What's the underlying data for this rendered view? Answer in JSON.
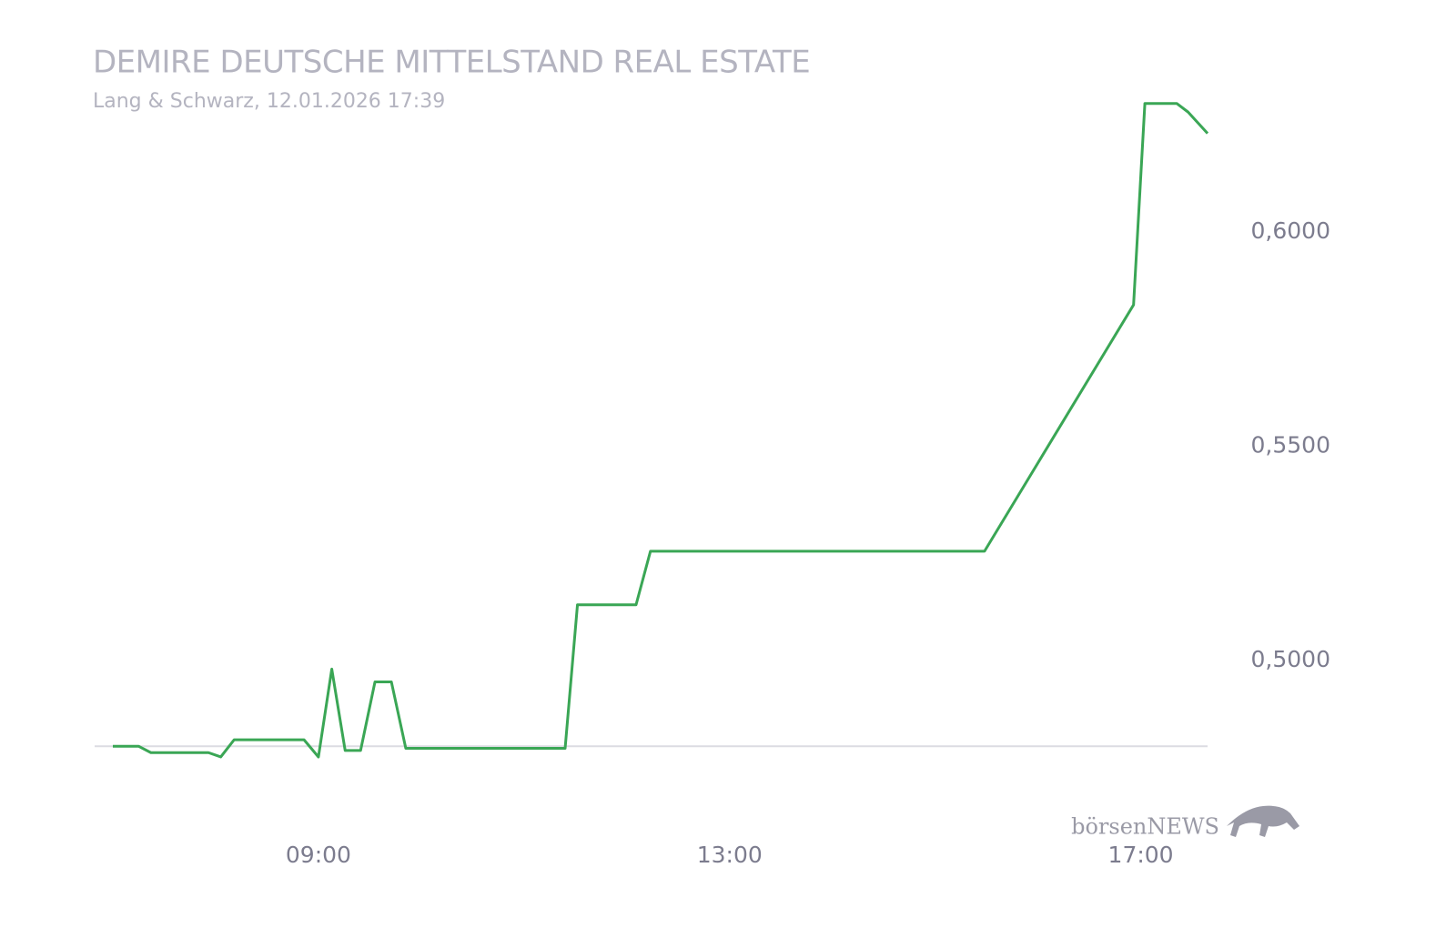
{
  "chart_data": {
    "type": "line",
    "title": "DEMIRE DEUTSCHE MITTELSTAND REAL ESTATE",
    "subtitle": "Lang & Schwarz, 12.01.2026 17:39",
    "watermark": "börsenNEWS",
    "x": [
      7.0,
      7.25,
      7.37,
      7.93,
      8.05,
      8.18,
      8.86,
      9.0,
      9.13,
      9.26,
      9.41,
      9.55,
      9.71,
      9.85,
      11.4,
      11.52,
      12.09,
      12.23,
      15.48,
      16.93,
      17.04,
      17.35,
      17.46,
      17.65
    ],
    "series": [
      {
        "name": "DEMIRE",
        "color": "#3aa655",
        "values": [
          0.48,
          0.48,
          0.4785,
          0.4785,
          0.4775,
          0.4815,
          0.4815,
          0.4775,
          0.498,
          0.479,
          0.479,
          0.495,
          0.495,
          0.4795,
          0.4795,
          0.513,
          0.513,
          0.5255,
          0.5255,
          0.583,
          0.63,
          0.63,
          0.628,
          0.623
        ]
      }
    ],
    "reference_line": 0.48,
    "xlim": [
      7.0,
      17.65
    ],
    "xticks": [
      {
        "value": 9,
        "label": "09:00"
      },
      {
        "value": 13,
        "label": "13:00"
      },
      {
        "value": 17,
        "label": "17:00"
      }
    ],
    "ylim": [
      0.46,
      0.64
    ],
    "yticks": [
      {
        "value": 0.5,
        "label": "0,5000"
      },
      {
        "value": 0.55,
        "label": "0,5500"
      },
      {
        "value": 0.6,
        "label": "0,6000"
      }
    ],
    "grid": false
  }
}
